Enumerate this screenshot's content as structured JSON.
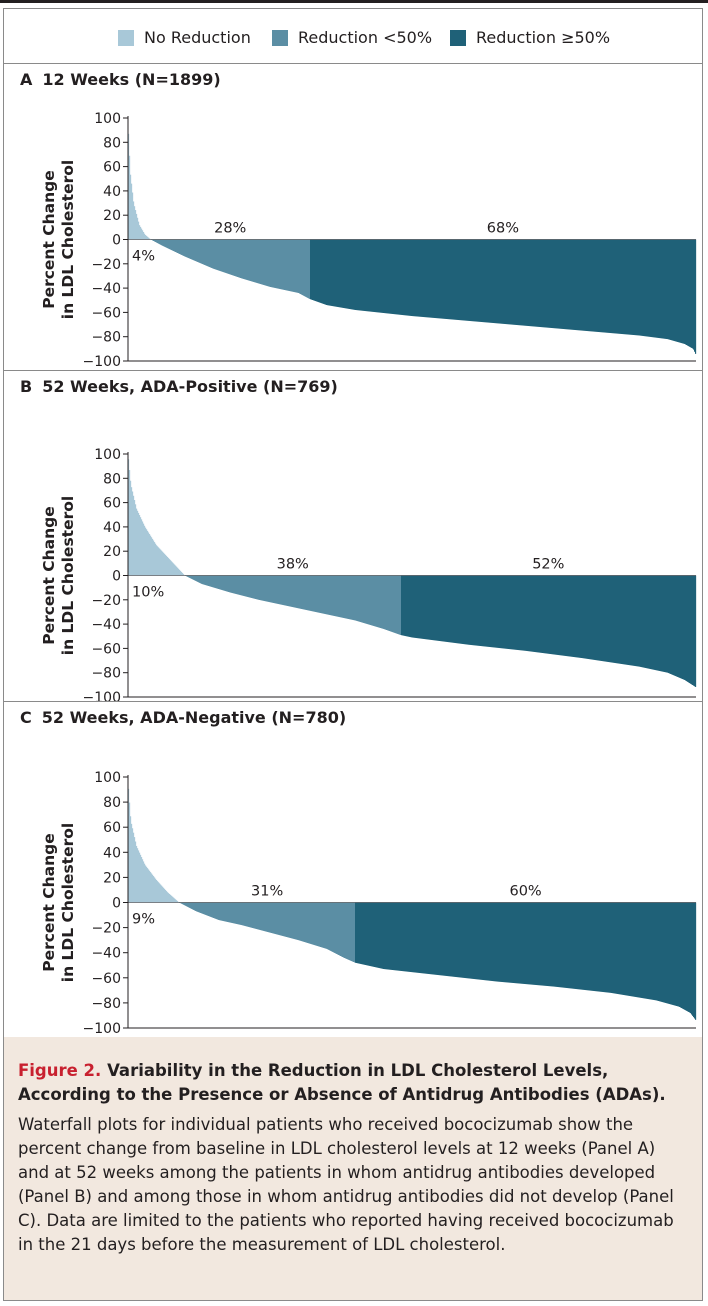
{
  "colors": {
    "no_reduction": "#a8c8d8",
    "reduction_lt50": "#5b8ea4",
    "reduction_ge50": "#1f6178",
    "caption_background": "#f2e8df",
    "figure_label": "#c8202f"
  },
  "legend": {
    "items": [
      {
        "label": "No Reduction",
        "color": "#a8c8d8"
      },
      {
        "label": "Reduction <50%",
        "color": "#5b8ea4"
      },
      {
        "label": "Reduction ≥50%",
        "color": "#1f6178"
      }
    ]
  },
  "chart_data": [
    {
      "type": "bar",
      "panel": "A",
      "title": "12 Weeks (N=1899)",
      "ylabel": "Percent Change in LDL Cholesterol",
      "ylim": [
        -100,
        100
      ],
      "yticks": [
        100,
        80,
        60,
        40,
        20,
        0,
        -20,
        -40,
        -60,
        -80,
        -100
      ],
      "n": 1899,
      "segments": [
        {
          "name": "No Reduction",
          "percent_label": "4%",
          "share": 0.04
        },
        {
          "name": "Reduction <50%",
          "percent_label": "28%",
          "share": 0.28
        },
        {
          "name": "Reduction ≥50%",
          "percent_label": "68%",
          "share": 0.68
        }
      ],
      "curve": [
        [
          0,
          96
        ],
        [
          0.004,
          55
        ],
        [
          0.01,
          30
        ],
        [
          0.02,
          12
        ],
        [
          0.03,
          4
        ],
        [
          0.04,
          0
        ],
        [
          0.06,
          -5
        ],
        [
          0.1,
          -14
        ],
        [
          0.15,
          -24
        ],
        [
          0.2,
          -32
        ],
        [
          0.25,
          -39
        ],
        [
          0.3,
          -44
        ],
        [
          0.32,
          -49
        ],
        [
          0.35,
          -54
        ],
        [
          0.4,
          -58
        ],
        [
          0.5,
          -63
        ],
        [
          0.6,
          -67
        ],
        [
          0.7,
          -71
        ],
        [
          0.8,
          -75
        ],
        [
          0.9,
          -79
        ],
        [
          0.95,
          -82
        ],
        [
          0.98,
          -86
        ],
        [
          0.995,
          -90
        ],
        [
          1,
          -95
        ]
      ]
    },
    {
      "type": "bar",
      "panel": "B",
      "title": "52 Weeks, ADA-Positive (N=769)",
      "ylabel": "Percent Change in LDL Cholesterol",
      "ylim": [
        -100,
        100
      ],
      "yticks": [
        100,
        80,
        60,
        40,
        20,
        0,
        -20,
        -40,
        -60,
        -80,
        -100
      ],
      "n": 769,
      "segments": [
        {
          "name": "No Reduction",
          "percent_label": "10%",
          "share": 0.1
        },
        {
          "name": "Reduction <50%",
          "percent_label": "38%",
          "share": 0.38
        },
        {
          "name": "Reduction ≥50%",
          "percent_label": "52%",
          "share": 0.52
        }
      ],
      "curve": [
        [
          0,
          100
        ],
        [
          0.005,
          75
        ],
        [
          0.015,
          55
        ],
        [
          0.03,
          40
        ],
        [
          0.05,
          25
        ],
        [
          0.07,
          15
        ],
        [
          0.09,
          5
        ],
        [
          0.1,
          0
        ],
        [
          0.13,
          -7
        ],
        [
          0.18,
          -14
        ],
        [
          0.23,
          -20
        ],
        [
          0.3,
          -27
        ],
        [
          0.35,
          -32
        ],
        [
          0.4,
          -37
        ],
        [
          0.45,
          -44
        ],
        [
          0.48,
          -49
        ],
        [
          0.5,
          -51
        ],
        [
          0.6,
          -57
        ],
        [
          0.7,
          -62
        ],
        [
          0.8,
          -68
        ],
        [
          0.9,
          -75
        ],
        [
          0.95,
          -80
        ],
        [
          0.98,
          -86
        ],
        [
          1,
          -92
        ]
      ]
    },
    {
      "type": "bar",
      "panel": "C",
      "title": "52 Weeks, ADA-Negative (N=780)",
      "ylabel": "Percent Change in LDL Cholesterol",
      "ylim": [
        -100,
        100
      ],
      "yticks": [
        100,
        80,
        60,
        40,
        20,
        0,
        -20,
        -40,
        -60,
        -80,
        -100
      ],
      "n": 780,
      "segments": [
        {
          "name": "No Reduction",
          "percent_label": "9%",
          "share": 0.09
        },
        {
          "name": "Reduction <50%",
          "percent_label": "31%",
          "share": 0.31
        },
        {
          "name": "Reduction ≥50%",
          "percent_label": "60%",
          "share": 0.6
        }
      ],
      "curve": [
        [
          0,
          96
        ],
        [
          0.005,
          65
        ],
        [
          0.015,
          45
        ],
        [
          0.03,
          30
        ],
        [
          0.05,
          18
        ],
        [
          0.07,
          8
        ],
        [
          0.09,
          0
        ],
        [
          0.12,
          -7
        ],
        [
          0.16,
          -14
        ],
        [
          0.2,
          -18
        ],
        [
          0.25,
          -24
        ],
        [
          0.3,
          -30
        ],
        [
          0.35,
          -37
        ],
        [
          0.38,
          -44
        ],
        [
          0.4,
          -48
        ],
        [
          0.45,
          -53
        ],
        [
          0.55,
          -58
        ],
        [
          0.65,
          -63
        ],
        [
          0.75,
          -67
        ],
        [
          0.85,
          -72
        ],
        [
          0.93,
          -78
        ],
        [
          0.97,
          -83
        ],
        [
          0.99,
          -88
        ],
        [
          1,
          -94
        ]
      ]
    }
  ],
  "caption": {
    "figure_label": "Figure 2.",
    "title": "Variability in the Reduction in LDL Cholesterol Levels, According to the Presence or Absence of Antidrug Antibodies (ADAs).",
    "body": "Waterfall plots for individual patients who received bococizumab show the percent change from baseline in LDL cholesterol levels at 12 weeks (Panel A) and at 52 weeks among the patients in whom antidrug antibodies developed (Panel B) and among those in whom antidrug antibodies did not develop (Panel C). Data are limited to the patients who reported having received bococizumab in the 21 days before the measurement of LDL cholesterol."
  }
}
